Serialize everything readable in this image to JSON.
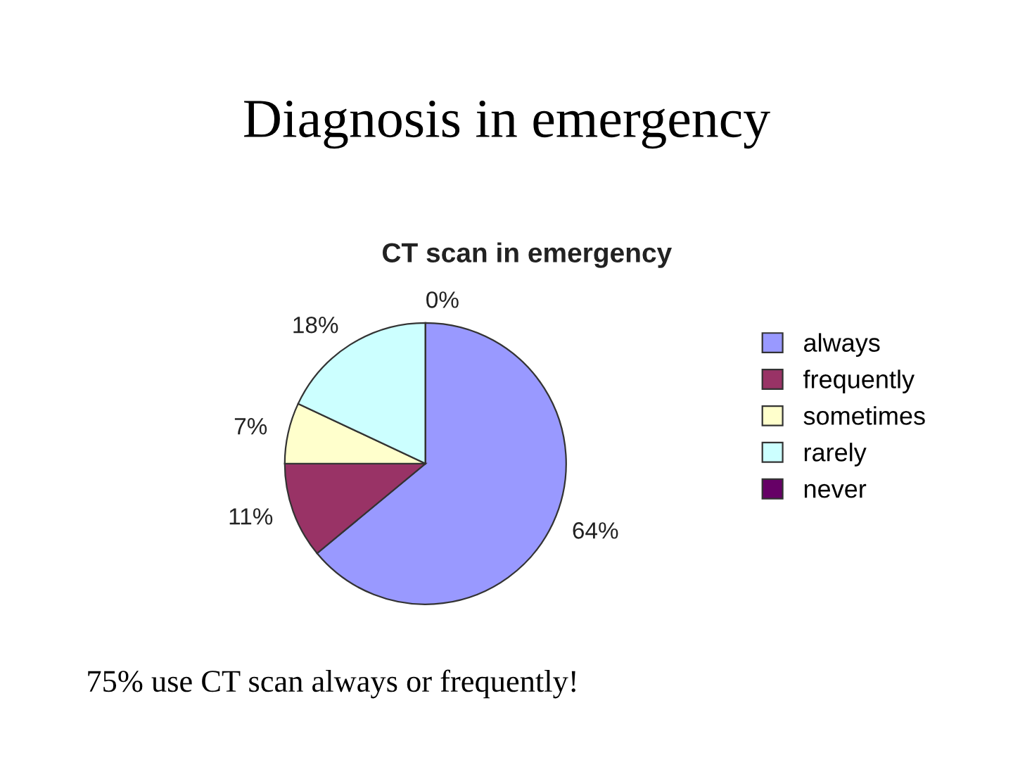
{
  "chart_data": {
    "type": "pie",
    "title": "Diagnosis in emergency",
    "subtitle": "CT scan in emergency",
    "categories": [
      "always",
      "frequently",
      "sometimes",
      "rarely",
      "never"
    ],
    "values": [
      64,
      11,
      7,
      18,
      0
    ],
    "value_labels": [
      "64%",
      "11%",
      "7%",
      "18%",
      "0%"
    ],
    "colors": [
      "#9999ff",
      "#993366",
      "#ffffcc",
      "#ccffff",
      "#660066"
    ],
    "legend": "right",
    "annotations": [
      "75% use CT scan always or frequently!"
    ]
  }
}
